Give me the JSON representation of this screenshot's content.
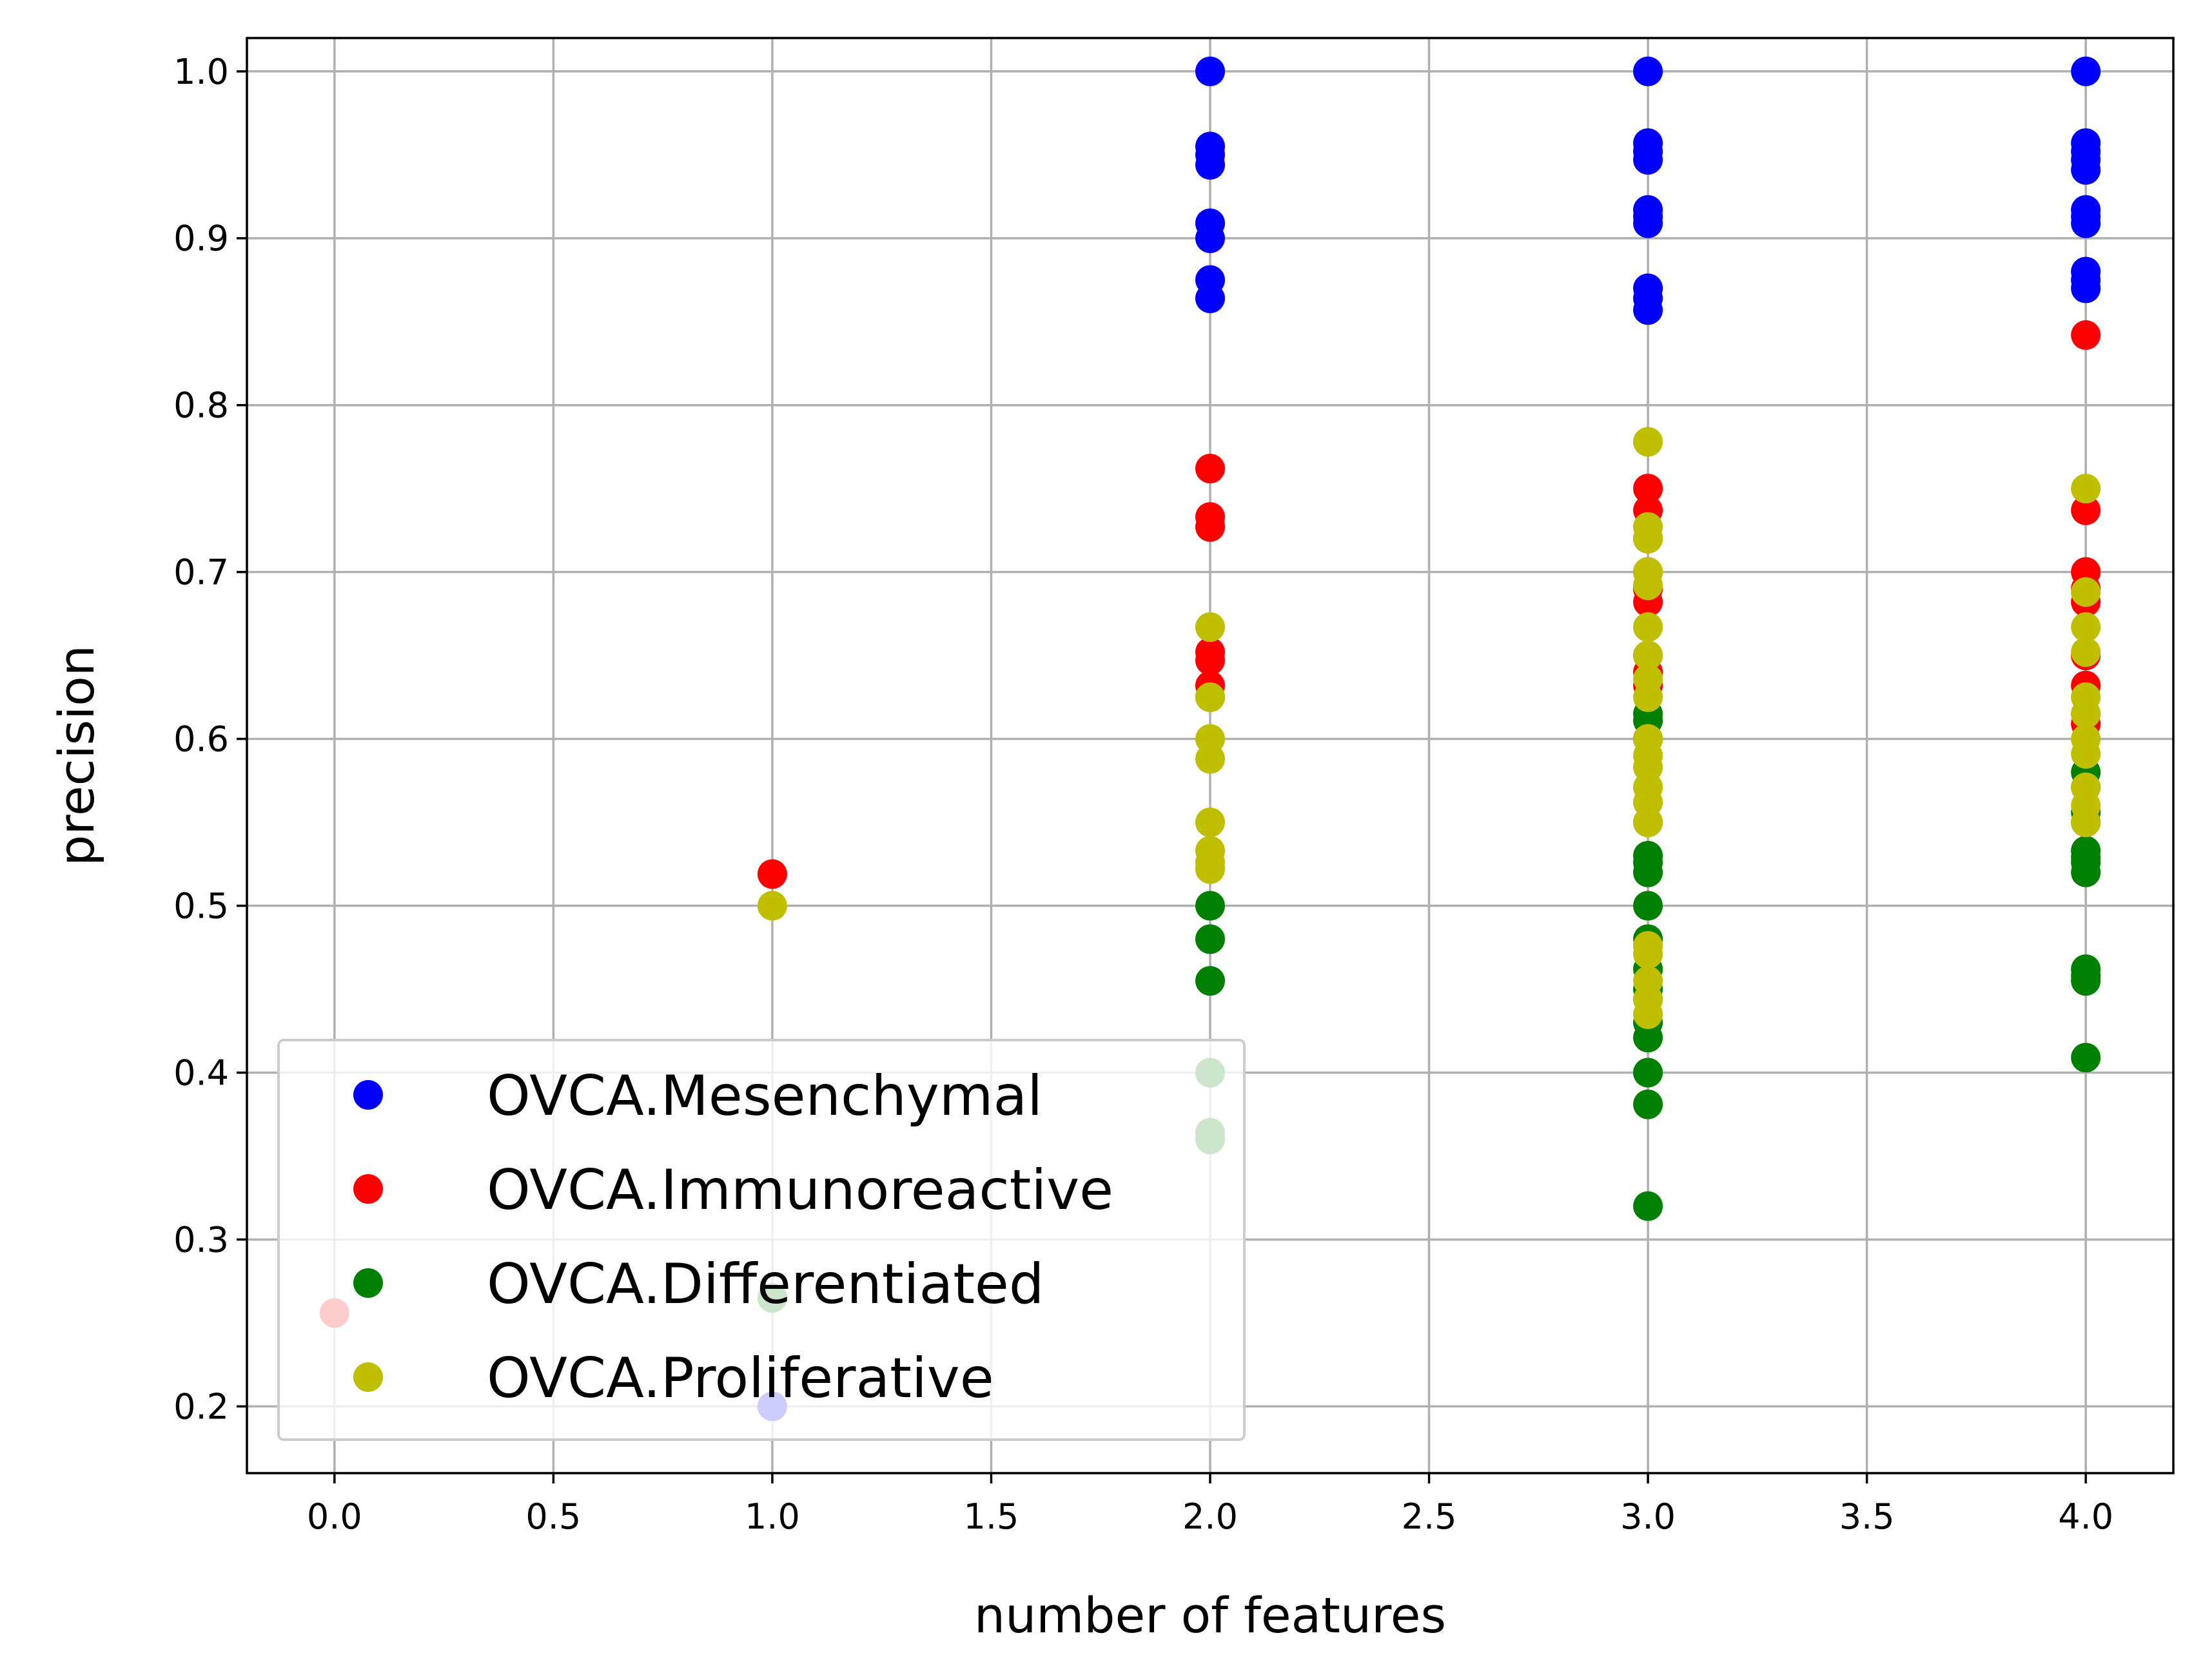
{
  "chart_data": {
    "type": "scatter",
    "title": "",
    "xlabel": "number of features",
    "ylabel": "precision",
    "xlim": [
      -0.2,
      4.2
    ],
    "ylim": [
      0.16,
      1.02
    ],
    "xticks": [
      0.0,
      0.5,
      1.0,
      1.5,
      2.0,
      2.5,
      3.0,
      3.5,
      4.0
    ],
    "xtick_labels": [
      "0.0",
      "0.5",
      "1.0",
      "1.5",
      "2.0",
      "2.5",
      "3.0",
      "3.5",
      "4.0"
    ],
    "yticks": [
      0.2,
      0.3,
      0.4,
      0.5,
      0.6,
      0.7,
      0.8,
      0.9,
      1.0
    ],
    "ytick_labels": [
      "0.2",
      "0.3",
      "0.4",
      "0.5",
      "0.6",
      "0.7",
      "0.8",
      "0.9",
      "1.0"
    ],
    "grid": true,
    "legend_position": "lower-left",
    "series": [
      {
        "name": "OVCA.Mesenchymal",
        "color": "#0000ff",
        "points": [
          [
            1,
            0.2
          ],
          [
            2,
            1.0
          ],
          [
            2,
            0.955
          ],
          [
            2,
            0.95
          ],
          [
            2,
            0.944
          ],
          [
            2,
            0.909
          ],
          [
            2,
            0.9
          ],
          [
            2,
            0.875
          ],
          [
            2,
            0.864
          ],
          [
            3,
            1.0
          ],
          [
            3,
            0.957
          ],
          [
            3,
            0.952
          ],
          [
            3,
            0.947
          ],
          [
            3,
            0.917
          ],
          [
            3,
            0.913
          ],
          [
            3,
            0.909
          ],
          [
            3,
            0.87
          ],
          [
            3,
            0.864
          ],
          [
            3,
            0.857
          ],
          [
            4,
            1.0
          ],
          [
            4,
            0.957
          ],
          [
            4,
            0.952
          ],
          [
            4,
            0.947
          ],
          [
            4,
            0.941
          ],
          [
            4,
            0.917
          ],
          [
            4,
            0.913
          ],
          [
            4,
            0.909
          ],
          [
            4,
            0.88
          ],
          [
            4,
            0.875
          ],
          [
            4,
            0.87
          ]
        ]
      },
      {
        "name": "OVCA.Immunoreactive",
        "color": "#ff0000",
        "points": [
          [
            0,
            0.256
          ],
          [
            1,
            0.519
          ],
          [
            2,
            0.762
          ],
          [
            2,
            0.733
          ],
          [
            2,
            0.727
          ],
          [
            2,
            0.652
          ],
          [
            2,
            0.647
          ],
          [
            2,
            0.632
          ],
          [
            2,
            0.625
          ],
          [
            3,
            0.75
          ],
          [
            3,
            0.737
          ],
          [
            3,
            0.72
          ],
          [
            3,
            0.7
          ],
          [
            3,
            0.69
          ],
          [
            3,
            0.682
          ],
          [
            3,
            0.65
          ],
          [
            3,
            0.64
          ],
          [
            3,
            0.632
          ],
          [
            3,
            0.6
          ],
          [
            4,
            0.842
          ],
          [
            4,
            0.737
          ],
          [
            4,
            0.7
          ],
          [
            4,
            0.69
          ],
          [
            4,
            0.682
          ],
          [
            4,
            0.65
          ],
          [
            4,
            0.632
          ],
          [
            4,
            0.615
          ],
          [
            4,
            0.609
          ]
        ]
      },
      {
        "name": "OVCA.Differentiated",
        "color": "#008000",
        "points": [
          [
            1,
            0.265
          ],
          [
            2,
            0.5
          ],
          [
            2,
            0.48
          ],
          [
            2,
            0.455
          ],
          [
            2,
            0.4
          ],
          [
            2,
            0.364
          ],
          [
            2,
            0.36
          ],
          [
            3,
            0.615
          ],
          [
            3,
            0.611
          ],
          [
            3,
            0.6
          ],
          [
            3,
            0.55
          ],
          [
            3,
            0.53
          ],
          [
            3,
            0.526
          ],
          [
            3,
            0.52
          ],
          [
            3,
            0.5
          ],
          [
            3,
            0.48
          ],
          [
            3,
            0.462
          ],
          [
            3,
            0.45
          ],
          [
            3,
            0.444
          ],
          [
            3,
            0.43
          ],
          [
            3,
            0.421
          ],
          [
            3,
            0.4
          ],
          [
            3,
            0.381
          ],
          [
            3,
            0.32
          ],
          [
            4,
            0.58
          ],
          [
            4,
            0.571
          ],
          [
            4,
            0.556
          ],
          [
            4,
            0.55
          ],
          [
            4,
            0.533
          ],
          [
            4,
            0.529
          ],
          [
            4,
            0.526
          ],
          [
            4,
            0.52
          ],
          [
            4,
            0.462
          ],
          [
            4,
            0.458
          ],
          [
            4,
            0.455
          ],
          [
            4,
            0.409
          ]
        ]
      },
      {
        "name": "OVCA.Proliferative",
        "color": "#bfbf00",
        "points": [
          [
            1,
            0.5
          ],
          [
            2,
            0.667
          ],
          [
            2,
            0.625
          ],
          [
            2,
            0.6
          ],
          [
            2,
            0.588
          ],
          [
            2,
            0.55
          ],
          [
            2,
            0.533
          ],
          [
            2,
            0.526
          ],
          [
            2,
            0.522
          ],
          [
            3,
            0.778
          ],
          [
            3,
            0.727
          ],
          [
            3,
            0.72
          ],
          [
            3,
            0.7
          ],
          [
            3,
            0.692
          ],
          [
            3,
            0.667
          ],
          [
            3,
            0.65
          ],
          [
            3,
            0.636
          ],
          [
            3,
            0.625
          ],
          [
            3,
            0.6
          ],
          [
            3,
            0.59
          ],
          [
            3,
            0.583
          ],
          [
            3,
            0.571
          ],
          [
            3,
            0.562
          ],
          [
            3,
            0.55
          ],
          [
            3,
            0.476
          ],
          [
            3,
            0.471
          ],
          [
            3,
            0.455
          ],
          [
            3,
            0.444
          ],
          [
            3,
            0.435
          ],
          [
            4,
            0.75
          ],
          [
            4,
            0.688
          ],
          [
            4,
            0.667
          ],
          [
            4,
            0.652
          ],
          [
            4,
            0.625
          ],
          [
            4,
            0.615
          ],
          [
            4,
            0.6
          ],
          [
            4,
            0.591
          ],
          [
            4,
            0.571
          ],
          [
            4,
            0.56
          ],
          [
            4,
            0.55
          ]
        ]
      }
    ]
  }
}
